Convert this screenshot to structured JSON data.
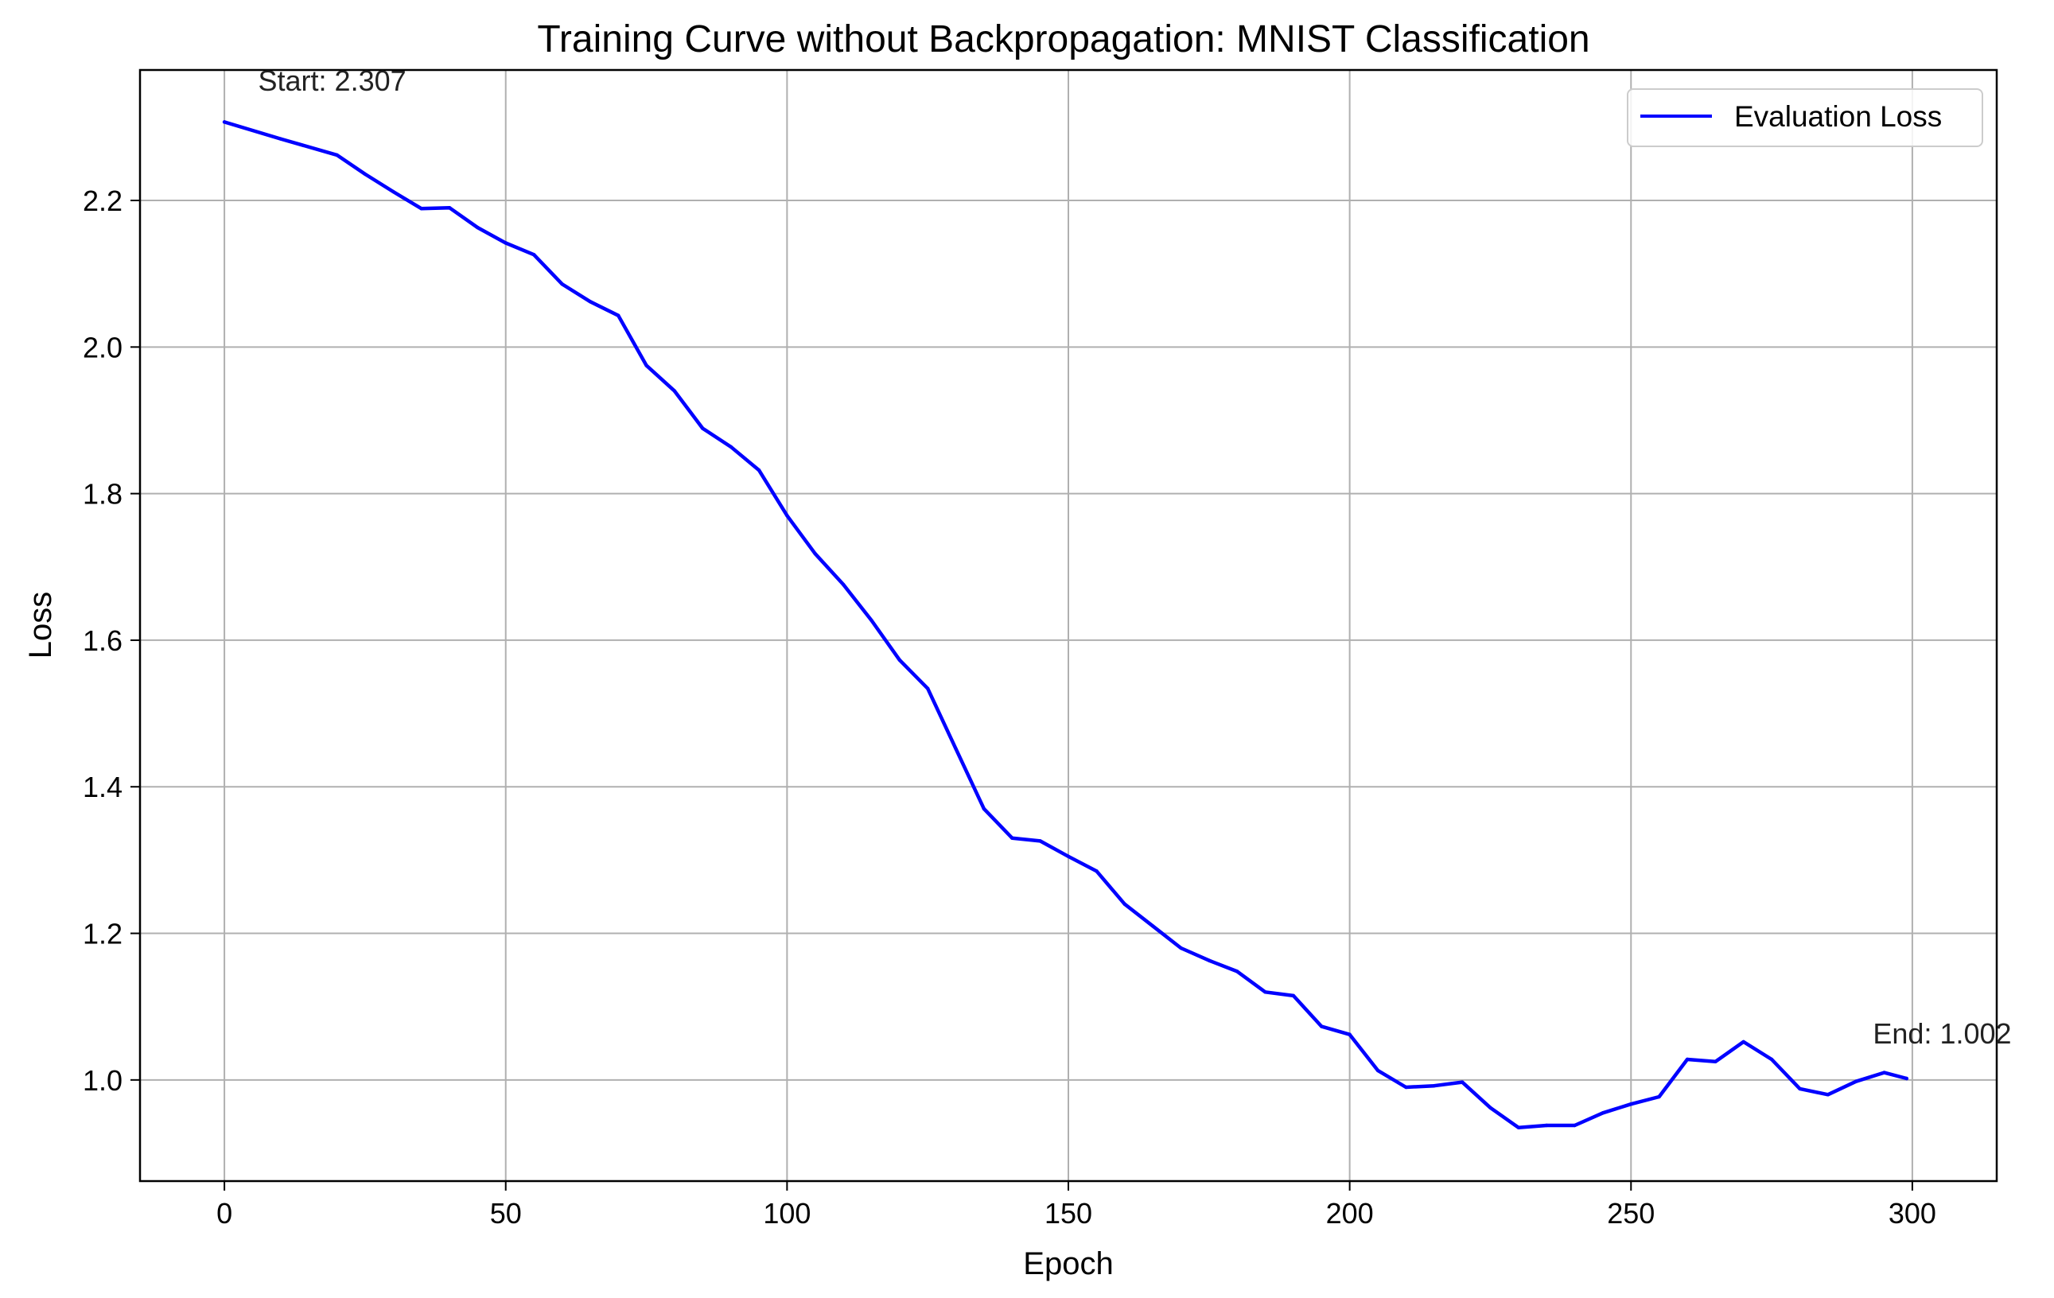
{
  "chart_data": {
    "type": "line",
    "title": "Training Curve without Backpropagation: MNIST Classification",
    "xlabel": "Epoch",
    "ylabel": "Loss",
    "xlim": [
      -15,
      315
    ],
    "ylim": [
      0.862,
      2.378
    ],
    "xticks": [
      0,
      50,
      100,
      150,
      200,
      250,
      300
    ],
    "yticks": [
      1.0,
      1.2,
      1.4,
      1.6,
      1.8,
      2.0,
      2.2
    ],
    "ytick_labels": [
      "1.0",
      "1.2",
      "1.4",
      "1.6",
      "1.8",
      "2.0",
      "2.2"
    ],
    "grid": true,
    "legend_position": "top-right",
    "series": [
      {
        "name": "Evaluation Loss",
        "color": "#0000ff",
        "x": [
          0,
          10,
          20,
          25,
          30,
          35,
          40,
          45,
          50,
          55,
          60,
          65,
          70,
          75,
          80,
          85,
          90,
          95,
          100,
          105,
          110,
          115,
          120,
          125,
          130,
          135,
          140,
          145,
          150,
          155,
          160,
          165,
          170,
          175,
          180,
          185,
          190,
          195,
          200,
          205,
          210,
          215,
          220,
          225,
          230,
          235,
          240,
          245,
          250,
          255,
          260,
          265,
          270,
          275,
          280,
          285,
          290,
          295,
          299
        ],
        "y": [
          2.307,
          2.284,
          2.262,
          2.236,
          2.212,
          2.189,
          2.19,
          2.163,
          2.142,
          2.126,
          2.086,
          2.062,
          2.043,
          1.975,
          1.94,
          1.889,
          1.864,
          1.832,
          1.77,
          1.718,
          1.676,
          1.627,
          1.573,
          1.534,
          1.452,
          1.37,
          1.33,
          1.326,
          1.305,
          1.285,
          1.24,
          1.21,
          1.18,
          1.163,
          1.148,
          1.12,
          1.115,
          1.073,
          1.062,
          1.013,
          0.99,
          0.992,
          0.997,
          0.962,
          0.935,
          0.938,
          0.938,
          0.955,
          0.967,
          0.977,
          1.028,
          1.025,
          1.052,
          1.028,
          0.988,
          0.98,
          0.998,
          1.01,
          1.002
        ]
      }
    ],
    "annotations": [
      {
        "text": "Start: 2.307",
        "x": 6,
        "y": 2.35
      },
      {
        "text": "End: 1.002",
        "x": 293,
        "y": 1.05
      }
    ]
  }
}
